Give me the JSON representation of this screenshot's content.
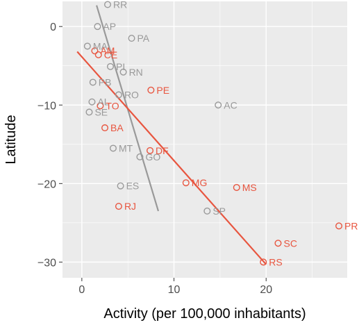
{
  "chart_data": {
    "type": "scatter",
    "title": "",
    "xlabel": "Activity (per 100,000 inhabitants)",
    "ylabel": "Latitude",
    "xlim": [
      -2.1,
      28.8
    ],
    "ylim": [
      -32.0,
      3.2
    ],
    "x_ticks": [
      0,
      10,
      20
    ],
    "y_ticks": [
      0,
      -10,
      -20,
      -30
    ],
    "x_tick_labels": [
      "0",
      "10",
      "20"
    ],
    "y_tick_labels": [
      "0",
      "−10",
      "−20",
      "−30"
    ],
    "grid": true,
    "legend": "none",
    "colors": {
      "panel_background": "#ebebeb",
      "grid": "#ffffff",
      "gray_series": "#999999",
      "red_series": "#e8553f",
      "gray_fit": "#999999",
      "red_fit": "#e8553f"
    },
    "series": [
      {
        "color_key": "gray_series",
        "points": [
          {
            "label": "RR",
            "x": 2.8,
            "y": 2.8
          },
          {
            "label": "AP",
            "x": 1.7,
            "y": 0.0
          },
          {
            "label": "PA",
            "x": 5.4,
            "y": -1.5
          },
          {
            "label": "MA",
            "x": 0.6,
            "y": -2.5
          },
          {
            "label": "PI",
            "x": 3.1,
            "y": -5.1
          },
          {
            "label": "RN",
            "x": 4.5,
            "y": -5.8
          },
          {
            "label": "PB",
            "x": 1.2,
            "y": -7.1
          },
          {
            "label": "RO",
            "x": 4.0,
            "y": -8.7
          },
          {
            "label": "AL",
            "x": 1.1,
            "y": -9.6
          },
          {
            "label": "SE",
            "x": 0.8,
            "y": -10.9
          },
          {
            "label": "AC",
            "x": 14.8,
            "y": -10.0
          },
          {
            "label": "MT",
            "x": 3.4,
            "y": -15.5
          },
          {
            "label": "GO",
            "x": 6.3,
            "y": -16.6
          },
          {
            "label": "ES",
            "x": 4.2,
            "y": -20.3
          },
          {
            "label": "SP",
            "x": 13.6,
            "y": -23.5
          }
        ]
      },
      {
        "color_key": "red_series",
        "points": [
          {
            "label": "AM",
            "x": 1.4,
            "y": -3.1
          },
          {
            "label": "CE",
            "x": 1.8,
            "y": -3.6
          },
          {
            "label": "TO",
            "x": 2.0,
            "y": -10.1
          },
          {
            "label": "PE",
            "x": 7.5,
            "y": -8.1
          },
          {
            "label": "BA",
            "x": 2.5,
            "y": -12.9
          },
          {
            "label": "DF",
            "x": 7.4,
            "y": -15.8
          },
          {
            "label": "MG",
            "x": 11.3,
            "y": -19.9
          },
          {
            "label": "MS",
            "x": 16.8,
            "y": -20.5
          },
          {
            "label": "RJ",
            "x": 4.0,
            "y": -22.9
          },
          {
            "label": "RS",
            "x": 19.7,
            "y": -30.0
          },
          {
            "label": "SC",
            "x": 21.3,
            "y": -27.6
          },
          {
            "label": "PR",
            "x": 27.9,
            "y": -25.4
          }
        ]
      }
    ],
    "fit_lines": [
      {
        "color_key": "gray_fit",
        "x": [
          1.6,
          8.3
        ],
        "y": [
          2.7,
          -23.5
        ]
      },
      {
        "color_key": "red_fit",
        "x": [
          -0.5,
          20.0
        ],
        "y": [
          -3.2,
          -30.3
        ]
      }
    ]
  }
}
